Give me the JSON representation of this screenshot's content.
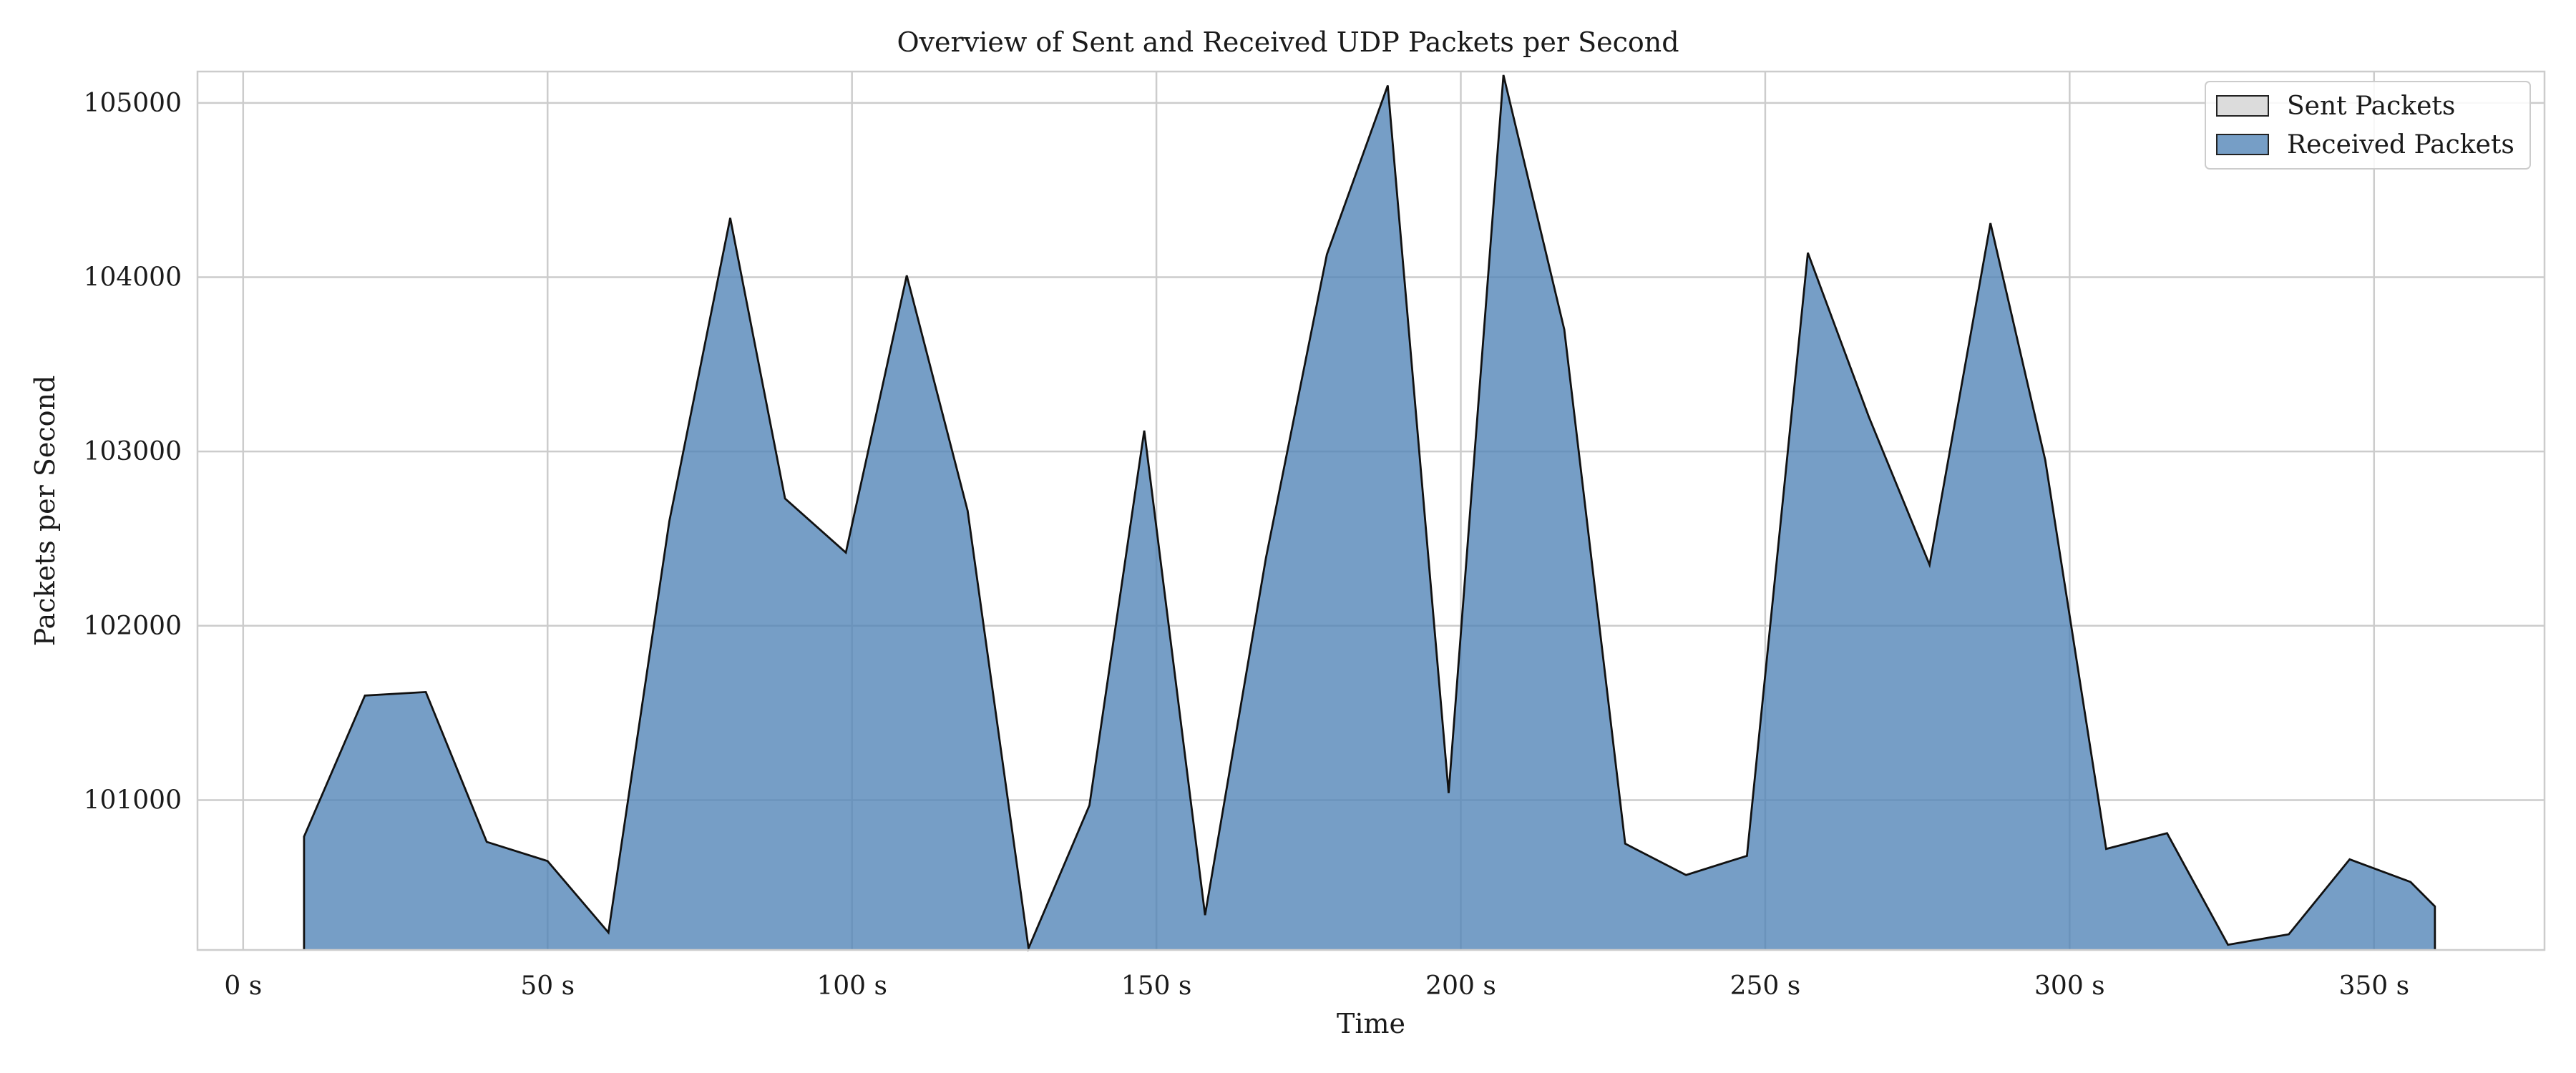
{
  "chart_data": {
    "type": "area",
    "title": "Overview of Sent and Received UDP Packets per Second",
    "xlabel": "Time",
    "ylabel": "Packets per Second",
    "xlim": [
      -7.5,
      378
    ],
    "ylim": [
      100140,
      105180
    ],
    "x_ticks": [
      0,
      50,
      100,
      150,
      200,
      250,
      300,
      350
    ],
    "x_tick_labels": [
      "0 s",
      "50 s",
      "100 s",
      "150 s",
      "200 s",
      "250 s",
      "300 s",
      "350 s"
    ],
    "y_ticks": [
      101000,
      102000,
      103000,
      104000,
      105000
    ],
    "y_tick_labels": [
      "101000",
      "102000",
      "103000",
      "104000",
      "105000"
    ],
    "grid": true,
    "legend_position": "top-right",
    "x": [
      10,
      20,
      30,
      40,
      50,
      60,
      70,
      80,
      89,
      99,
      109,
      119,
      129,
      139,
      148,
      158,
      168,
      178,
      188,
      198,
      207,
      217,
      227,
      237,
      247,
      257,
      267,
      277,
      287,
      296,
      306,
      316,
      326,
      336,
      346,
      356,
      360
    ],
    "series": [
      {
        "name": "Sent Packets",
        "color": "#dcdcdc",
        "values": null
      },
      {
        "name": "Received Packets",
        "color": "#4f83b6",
        "values": [
          100790,
          101600,
          101620,
          100760,
          100650,
          100240,
          102600,
          104340,
          102730,
          102420,
          104010,
          102660,
          100150,
          100970,
          103120,
          100340,
          102390,
          104130,
          105100,
          101040,
          105160,
          103700,
          100750,
          100570,
          100680,
          104140,
          103200,
          102350,
          104310,
          102950,
          100720,
          100810,
          100170,
          100230,
          100660,
          100530,
          100390
        ]
      }
    ]
  }
}
